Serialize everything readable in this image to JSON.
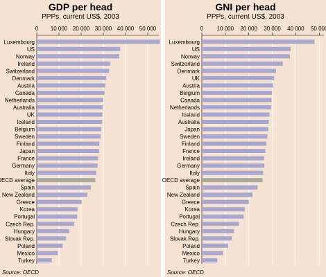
{
  "colors": {
    "panel_bg": "#f7e3d3",
    "bar": "#a9a6cf",
    "bar_highlight": "#a9a9a0",
    "grid": "#ffffff"
  },
  "chart_data": [
    {
      "type": "bar",
      "orientation": "horizontal",
      "title": "GDP per head",
      "subtitle": "PPPs, current US$, 2003",
      "source": "Source: OECD",
      "xlim": [
        0,
        55000
      ],
      "ticks": [
        0,
        10000,
        20000,
        30000,
        40000,
        50000
      ],
      "tick_labels": [
        "0",
        "10 000",
        "20 000",
        "30 000",
        "40 000",
        "50 000"
      ],
      "grid": true,
      "highlight": "OECD average",
      "categories": [
        "Luxembourg",
        "US",
        "Norway",
        "Ireland",
        "Switzerland",
        "Denmark",
        "Austria",
        "Canada",
        "Netherlands",
        "Australia",
        "UK",
        "Iceland",
        "Belgium",
        "Sweden",
        "Finland",
        "Japan",
        "France",
        "Germany",
        "Italy",
        "OECD average",
        "Spain",
        "New Zealand",
        "Greece",
        "Korea",
        "Portugal",
        "Czech Rep.",
        "Hungary",
        "Slovak Rep.",
        "Poland",
        "Mexico",
        "Turkey"
      ],
      "values": [
        55500,
        37600,
        37100,
        33200,
        32600,
        31300,
        30900,
        30500,
        30000,
        29700,
        29600,
        29500,
        29100,
        28800,
        28200,
        28000,
        27600,
        27400,
        26800,
        26400,
        24400,
        22800,
        20200,
        18400,
        18200,
        16800,
        14700,
        13200,
        11700,
        9500,
        6800
      ]
    },
    {
      "type": "bar",
      "orientation": "horizontal",
      "title": "GNI per head",
      "subtitle": "PPPs, current US$, 2003",
      "source": "Source: OECD",
      "xlim": [
        0,
        52000
      ],
      "ticks": [
        0,
        10000,
        20000,
        30000,
        40000,
        50000
      ],
      "tick_labels": [
        "0",
        "10 000",
        "20 000",
        "30 000",
        "40 000",
        "50 000"
      ],
      "grid": true,
      "highlight": "OECD average",
      "categories": [
        "Luxembourg",
        "US",
        "Norway",
        "Switzerland",
        "Denmark",
        "UK",
        "Austria",
        "Belgium",
        "Canada",
        "Netherlands",
        "Iceland",
        "Australia",
        "Japan",
        "Sweden",
        "Finland",
        "France",
        "Ireland",
        "Germany",
        "Italy",
        "OECD average",
        "Spain",
        "New Zealand",
        "Greece",
        "Korea",
        "Portugal",
        "Czech Rep.",
        "Hungary",
        "Slovak Rep.",
        "Poland",
        "Mexico",
        "Turkey"
      ],
      "values": [
        48000,
        37800,
        37500,
        34500,
        31600,
        30800,
        30300,
        29900,
        29700,
        29600,
        28800,
        28500,
        28300,
        27900,
        27500,
        27000,
        26500,
        26600,
        26100,
        25900,
        23800,
        21600,
        20000,
        18300,
        17800,
        15800,
        13700,
        12800,
        11200,
        9000,
        6600
      ]
    }
  ]
}
